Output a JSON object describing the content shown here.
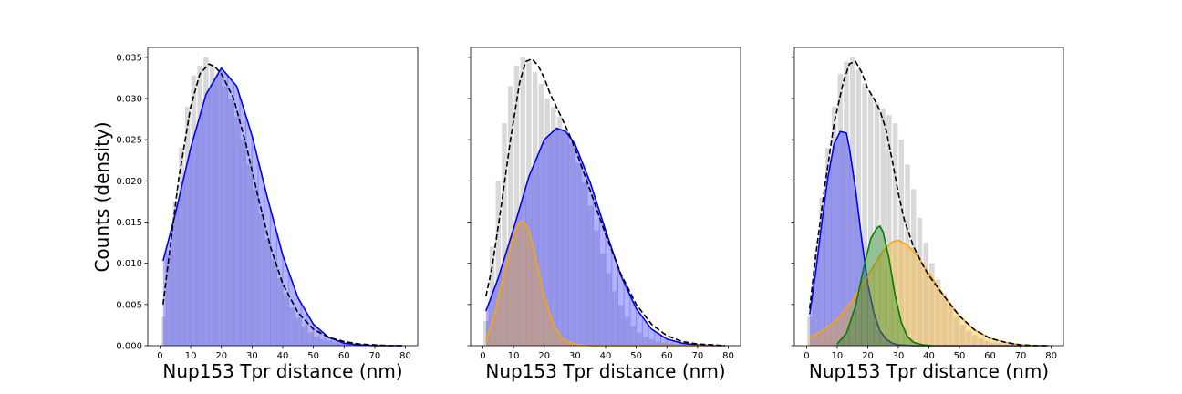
{
  "figure": {
    "ylabel": "Counts (density)",
    "colors": {
      "hist": "#d9d9d9",
      "blue": "#0000ff",
      "orange": "#ffa500",
      "green": "#008000",
      "envelope": "#000000"
    }
  },
  "chart_data": [
    {
      "type": "area",
      "xlabel": "Nup153 Tpr distance (nm)",
      "ylabel": "Counts (density)",
      "xlim": [
        -4,
        84
      ],
      "ylim": [
        0,
        0.0362
      ],
      "x_ticks": [
        0,
        10,
        20,
        30,
        40,
        50,
        60,
        70,
        80
      ],
      "y_ticks": [
        0.0,
        0.005,
        0.01,
        0.015,
        0.02,
        0.025,
        0.03,
        0.035
      ],
      "y_tick_labels": [
        "0.000",
        "0.005",
        "0.010",
        "0.015",
        "0.020",
        "0.025",
        "0.030",
        "0.035"
      ],
      "histogram": {
        "bin_edges_start": 0,
        "bin_width": 2,
        "values": [
          0.0035,
          0.011,
          0.0175,
          0.024,
          0.029,
          0.0328,
          0.034,
          0.035,
          0.0342,
          0.033,
          0.0315,
          0.03,
          0.0278,
          0.025,
          0.022,
          0.019,
          0.016,
          0.013,
          0.0105,
          0.0082,
          0.0062,
          0.0046,
          0.0034,
          0.0024,
          0.0016,
          0.0011,
          0.0008,
          0.0006,
          0.0004,
          0.0003,
          0.0003,
          0.0002,
          0.0002,
          0.0002,
          0.0001,
          0.0001,
          0.0001,
          0.0001,
          0.0001,
          0.0001
        ]
      },
      "series": [
        {
          "color": "blue",
          "fill": true,
          "x": [
            1,
            5,
            10,
            15,
            20,
            25,
            30,
            35,
            40,
            45,
            50,
            55,
            60,
            65,
            70,
            75,
            79
          ],
          "y": [
            0.0103,
            0.016,
            0.024,
            0.0305,
            0.0337,
            0.0315,
            0.0255,
            0.018,
            0.011,
            0.0058,
            0.0026,
            0.001,
            0.0003,
            0.0001,
            0.0,
            0.0,
            0.0
          ]
        },
        {
          "color": "envelope",
          "dashed": true,
          "x": [
            1,
            3,
            6,
            10,
            13,
            16,
            18,
            20,
            24,
            28,
            32,
            36,
            40,
            45,
            50,
            55,
            60,
            65,
            70,
            75,
            79
          ],
          "y": [
            0.005,
            0.011,
            0.02,
            0.029,
            0.033,
            0.0342,
            0.0338,
            0.033,
            0.03,
            0.0245,
            0.018,
            0.012,
            0.0075,
            0.004,
            0.002,
            0.001,
            0.0005,
            0.0002,
            0.0001,
            0.0,
            0.0
          ]
        }
      ]
    },
    {
      "type": "area",
      "xlabel": "Nup153 Tpr distance (nm)",
      "xlim": [
        -4,
        84
      ],
      "ylim": [
        0,
        0.0362
      ],
      "x_ticks": [
        0,
        10,
        20,
        30,
        40,
        50,
        60,
        70,
        80
      ],
      "y_ticks": [
        0.0,
        0.005,
        0.01,
        0.015,
        0.02,
        0.025,
        0.03,
        0.035
      ],
      "histogram": {
        "bin_edges_start": 0,
        "bin_width": 2,
        "values": [
          0.003,
          0.012,
          0.02,
          0.027,
          0.0315,
          0.034,
          0.035,
          0.0345,
          0.0332,
          0.0318,
          0.03,
          0.029,
          0.0278,
          0.0262,
          0.0245,
          0.0222,
          0.0198,
          0.017,
          0.014,
          0.0112,
          0.0088,
          0.0066,
          0.0049,
          0.0035,
          0.0024,
          0.0016,
          0.0011,
          0.0008,
          0.0005,
          0.0004,
          0.0003,
          0.0002,
          0.0002,
          0.0002,
          0.0001,
          0.0001,
          0.0001,
          0.0001,
          0.0001,
          0.0001
        ]
      },
      "series": [
        {
          "color": "blue",
          "fill": true,
          "x": [
            1,
            5,
            10,
            15,
            20,
            24,
            27,
            30,
            35,
            40,
            45,
            50,
            55,
            60,
            65,
            70,
            75,
            79
          ],
          "y": [
            0.0042,
            0.0082,
            0.0142,
            0.0205,
            0.025,
            0.0264,
            0.026,
            0.0245,
            0.0198,
            0.014,
            0.0085,
            0.0045,
            0.002,
            0.0008,
            0.0003,
            0.0001,
            0.0,
            0.0
          ]
        },
        {
          "color": "orange",
          "fill": true,
          "x": [
            1,
            4,
            7,
            10,
            12,
            13,
            15,
            17,
            20,
            23,
            26,
            30,
            35,
            40,
            50,
            60,
            70,
            79
          ],
          "y": [
            0.0008,
            0.004,
            0.009,
            0.0135,
            0.015,
            0.0152,
            0.014,
            0.011,
            0.006,
            0.0025,
            0.0008,
            0.0002,
            0.0,
            0.0,
            0.0,
            0.0,
            0.0,
            0.0
          ]
        },
        {
          "color": "envelope",
          "dashed": true,
          "x": [
            1,
            3,
            6,
            9,
            12,
            14,
            16,
            18,
            20,
            22,
            25,
            28,
            31,
            35,
            40,
            45,
            50,
            55,
            60,
            65,
            70,
            75,
            79
          ],
          "y": [
            0.006,
            0.0095,
            0.017,
            0.025,
            0.032,
            0.0345,
            0.0348,
            0.034,
            0.0325,
            0.0305,
            0.0282,
            0.0258,
            0.023,
            0.0188,
            0.0135,
            0.0087,
            0.005,
            0.0026,
            0.0012,
            0.0005,
            0.0002,
            0.0001,
            0.0
          ]
        }
      ]
    },
    {
      "type": "area",
      "xlabel": "Nup153 Tpr distance (nm)",
      "xlim": [
        -4,
        84
      ],
      "ylim": [
        0,
        0.0362
      ],
      "x_ticks": [
        0,
        10,
        20,
        30,
        40,
        50,
        60,
        70,
        80
      ],
      "y_ticks": [
        0.0,
        0.005,
        0.01,
        0.015,
        0.02,
        0.025,
        0.03,
        0.035
      ],
      "histogram": {
        "bin_edges_start": 0,
        "bin_width": 2,
        "values": [
          0.0035,
          0.011,
          0.018,
          0.024,
          0.029,
          0.033,
          0.0345,
          0.035,
          0.0335,
          0.0318,
          0.0305,
          0.0295,
          0.0288,
          0.028,
          0.027,
          0.025,
          0.022,
          0.019,
          0.0155,
          0.0125,
          0.01,
          0.008,
          0.0063,
          0.0048,
          0.0035,
          0.0025,
          0.0018,
          0.0013,
          0.0009,
          0.0006,
          0.0004,
          0.0003,
          0.0002,
          0.0002,
          0.0001,
          0.0001,
          0.0001,
          0.0001,
          0.0001,
          0.0001
        ]
      },
      "series": [
        {
          "color": "blue",
          "fill": true,
          "x": [
            1,
            3,
            5,
            7,
            9,
            11,
            13,
            14,
            16,
            18,
            20,
            22,
            24,
            26,
            28,
            30,
            35,
            40,
            50,
            60,
            70,
            79
          ],
          "y": [
            0.0038,
            0.009,
            0.015,
            0.0205,
            0.0245,
            0.026,
            0.0258,
            0.024,
            0.019,
            0.013,
            0.0075,
            0.004,
            0.0018,
            0.0008,
            0.0003,
            0.0001,
            0.0,
            0.0,
            0.0,
            0.0,
            0.0,
            0.0
          ]
        },
        {
          "color": "orange",
          "fill": true,
          "x": [
            1,
            5,
            10,
            15,
            20,
            25,
            28,
            30,
            33,
            36,
            40,
            45,
            50,
            55,
            60,
            65,
            70,
            75,
            79
          ],
          "y": [
            0.001,
            0.0018,
            0.0032,
            0.0055,
            0.0085,
            0.0115,
            0.0126,
            0.0128,
            0.0122,
            0.011,
            0.0088,
            0.006,
            0.0036,
            0.0019,
            0.0009,
            0.0004,
            0.0001,
            0.0,
            0.0
          ]
        },
        {
          "color": "green",
          "fill": true,
          "x": [
            10,
            13,
            16,
            19,
            21,
            23,
            24,
            25,
            27,
            29,
            31,
            33,
            35,
            38,
            41
          ],
          "y": [
            0.0002,
            0.0015,
            0.0048,
            0.01,
            0.013,
            0.0143,
            0.0145,
            0.0138,
            0.0105,
            0.006,
            0.0028,
            0.0011,
            0.0004,
            0.0001,
            0.0
          ]
        },
        {
          "color": "envelope",
          "dashed": true,
          "x": [
            1,
            3,
            6,
            9,
            12,
            14,
            16,
            18,
            20,
            22,
            24,
            26,
            28,
            30,
            32,
            35,
            38,
            40,
            45,
            50,
            55,
            60,
            65,
            70,
            75,
            79
          ],
          "y": [
            0.0045,
            0.011,
            0.0195,
            0.027,
            0.032,
            0.0342,
            0.0345,
            0.0332,
            0.0312,
            0.03,
            0.0285,
            0.0262,
            0.0225,
            0.0185,
            0.0152,
            0.012,
            0.0098,
            0.0085,
            0.006,
            0.0036,
            0.0019,
            0.0009,
            0.0004,
            0.0001,
            0.0,
            0.0
          ]
        }
      ]
    }
  ]
}
